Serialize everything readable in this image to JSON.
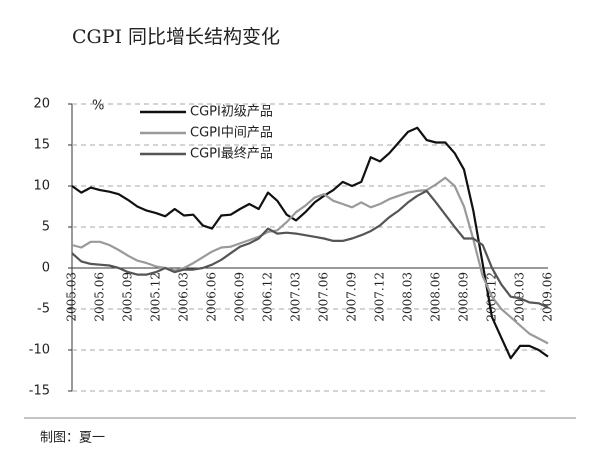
{
  "chart_data": {
    "type": "line",
    "title": "CGPI 同比增长结构变化",
    "y_label": "%",
    "source": "制图：夏一",
    "categories": [
      "2005.03",
      null,
      null,
      "2005.06",
      null,
      null,
      "2005.09",
      null,
      null,
      "2005.12",
      null,
      null,
      "2006.03",
      null,
      null,
      "2006.06",
      null,
      null,
      "2006.09",
      null,
      null,
      "2006.12",
      null,
      null,
      "2007.03",
      null,
      null,
      "2007.06",
      null,
      null,
      "2007.09",
      null,
      null,
      "2007.12",
      null,
      null,
      "2008.03",
      null,
      null,
      "2008.06",
      null,
      null,
      "2008.09",
      null,
      null,
      "2008.12",
      null,
      null,
      "2009.03",
      null,
      null,
      "2009.06"
    ],
    "series": [
      {
        "name": "CGPI初级产品",
        "color": "#111111",
        "values": [
          10,
          9.2,
          9.8,
          9.5,
          9.3,
          9,
          8.3,
          7.5,
          7,
          6.7,
          6.3,
          7.2,
          6.4,
          6.5,
          5.2,
          4.8,
          6.4,
          6.5,
          7.2,
          7.8,
          7.2,
          9.2,
          8.2,
          6.5,
          5.8,
          6.8,
          8,
          8.8,
          9.5,
          10.5,
          10,
          10.5,
          13.5,
          13,
          14,
          15.3,
          16.6,
          17.1,
          15.6,
          15.3,
          15.3,
          14,
          12,
          7,
          0.5,
          -6,
          -8.5,
          -11,
          -9.5,
          -9.5,
          -10,
          -10.8
        ]
      },
      {
        "name": "CGPI中间产品",
        "color": "#9a9a9a",
        "values": [
          2.8,
          2.5,
          3.2,
          3.2,
          2.8,
          2.2,
          1.5,
          0.9,
          0.6,
          0.2,
          0,
          -0.3,
          0,
          0.6,
          1.3,
          2,
          2.5,
          2.6,
          3,
          3.4,
          3.8,
          4.4,
          4.6,
          5.6,
          6.8,
          7.6,
          8.6,
          9,
          8.2,
          7.8,
          7.4,
          8,
          7.4,
          7.8,
          8.4,
          8.8,
          9.2,
          9.4,
          9.5,
          10.2,
          11,
          10,
          7.5,
          3.5,
          -1,
          -3.5,
          -5,
          -6,
          -7,
          -8,
          -8.6,
          -9.2
        ]
      },
      {
        "name": "CGPI最终产品",
        "color": "#555555",
        "values": [
          1.8,
          0.8,
          0.5,
          0.4,
          0.3,
          0,
          -0.5,
          -0.8,
          -0.8,
          -0.5,
          0,
          -0.5,
          -0.2,
          -0.2,
          0,
          0.4,
          1,
          1.8,
          2.6,
          3,
          3.6,
          4.8,
          4.2,
          4.3,
          4.2,
          4,
          3.8,
          3.6,
          3.3,
          3.3,
          3.6,
          4,
          4.5,
          5.2,
          6.2,
          7,
          8,
          8.8,
          9.4,
          8,
          6.5,
          5,
          3.6,
          3.6,
          2.8,
          0,
          -2,
          -3.5,
          -3.7,
          -4.2,
          -4.3,
          -4.8
        ]
      }
    ],
    "ylim": [
      -15,
      20
    ],
    "yticks": [
      -15,
      -10,
      -5,
      0,
      5,
      10,
      15,
      20
    ],
    "grid": true
  }
}
